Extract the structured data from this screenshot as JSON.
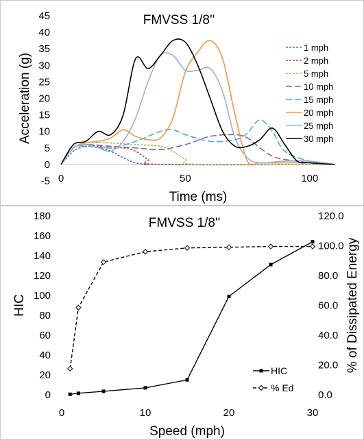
{
  "chart_data": [
    {
      "type": "line",
      "title": "FMVSS 1/8''",
      "xlabel": "Time (ms)",
      "ylabel": "Acceleration (g)",
      "xlim": [
        0,
        110
      ],
      "ylim": [
        -5,
        45
      ],
      "xticks": [
        0,
        50,
        100
      ],
      "yticks": [
        -5,
        0,
        5,
        10,
        15,
        20,
        25,
        30,
        35,
        40,
        45
      ],
      "legend_position": "right",
      "series": [
        {
          "name": "1 mph",
          "color": "#4472c4",
          "dash": "dot",
          "x": [
            0,
            5,
            10,
            15,
            20,
            25,
            30,
            35,
            40,
            110
          ],
          "y": [
            0,
            4,
            5.5,
            5,
            4,
            2,
            0.5,
            0,
            0,
            0
          ]
        },
        {
          "name": "2 mph",
          "color": "#c0504d",
          "dash": "dot",
          "x": [
            0,
            5,
            10,
            15,
            20,
            25,
            30,
            35,
            40,
            110
          ],
          "y": [
            0,
            5,
            6,
            5.5,
            5,
            5,
            4,
            1.5,
            0,
            0
          ]
        },
        {
          "name": "5 mph",
          "color": "#9bbb59",
          "dash": "dot",
          "x": [
            0,
            5,
            10,
            20,
            30,
            40,
            45,
            50,
            55,
            110
          ],
          "y": [
            0,
            5,
            6.5,
            6.5,
            6,
            5.5,
            4,
            1.5,
            0,
            0
          ]
        },
        {
          "name": "10 mph",
          "color": "#8064a2",
          "dash": "longdash",
          "x": [
            0,
            5,
            10,
            20,
            30,
            40,
            50,
            60,
            70,
            75,
            80,
            85,
            90,
            100,
            110
          ],
          "y": [
            0,
            5,
            6,
            5.5,
            5,
            4.5,
            6,
            8.5,
            9,
            8,
            5,
            2.5,
            1.5,
            0.5,
            0
          ]
        },
        {
          "name": "15 mph",
          "color": "#4bacc6",
          "dash": "longdash",
          "x": [
            0,
            5,
            10,
            20,
            30,
            40,
            45,
            50,
            60,
            70,
            75,
            80,
            85,
            90,
            100,
            110
          ],
          "y": [
            0,
            5,
            5.5,
            5,
            7,
            10,
            10.5,
            9,
            7,
            7.5,
            9.5,
            13.5,
            10,
            4,
            1,
            0
          ]
        },
        {
          "name": "20 mph",
          "color": "#f79646",
          "dash": "solid",
          "x": [
            0,
            5,
            10,
            15,
            20,
            25,
            30,
            35,
            40,
            45,
            50,
            55,
            60,
            65,
            70,
            75,
            80,
            90,
            100,
            110
          ],
          "y": [
            0,
            5,
            6.5,
            7,
            8,
            10.5,
            8.5,
            7.5,
            8,
            14,
            28,
            34,
            37.5,
            32,
            15,
            1,
            0.5,
            0.5,
            0.5,
            0
          ]
        },
        {
          "name": "25 mph",
          "color": "#95b3d7",
          "dash": "solid",
          "x": [
            0,
            5,
            10,
            15,
            20,
            25,
            30,
            35,
            40,
            45,
            50,
            55,
            60,
            65,
            70,
            75,
            80,
            90,
            100,
            110
          ],
          "y": [
            0,
            5,
            6,
            5,
            4,
            7,
            14,
            25,
            33,
            33,
            28.5,
            28.5,
            29,
            22,
            8,
            2,
            0.5,
            1,
            1,
            0
          ]
        },
        {
          "name": "30 mph",
          "color": "#000000",
          "dash": "solid",
          "x": [
            0,
            5,
            10,
            15,
            20,
            25,
            30,
            35,
            40,
            45,
            50,
            55,
            60,
            65,
            70,
            75,
            80,
            85,
            90,
            95,
            100,
            110
          ],
          "y": [
            0,
            6,
            7,
            10,
            9,
            15,
            32,
            29,
            33,
            37.5,
            37,
            30,
            20,
            10,
            5.5,
            5.5,
            7.5,
            11,
            6,
            1,
            0.5,
            0
          ]
        }
      ]
    },
    {
      "type": "line",
      "title": "FMVSS 1/8''",
      "xlabel": "Speed (mph)",
      "ylabel": "HIC",
      "y2label": "% of Dissipated Energy",
      "xlim": [
        0,
        30
      ],
      "ylim": [
        0,
        180
      ],
      "y2lim": [
        0,
        120
      ],
      "xticks": [
        0,
        10,
        20,
        30
      ],
      "yticks": [
        0,
        20,
        40,
        60,
        80,
        100,
        120,
        140,
        160,
        180
      ],
      "y2ticks": [
        "0.0",
        "20.0",
        "40.0",
        "60.0",
        "80.0",
        "100.0",
        "120.0"
      ],
      "legend_position": "right",
      "series": [
        {
          "name": "HIC",
          "axis": "left",
          "color": "#000000",
          "dash": "solid",
          "marker": "square",
          "x": [
            1,
            2,
            5,
            10,
            15,
            20,
            25,
            30
          ],
          "y": [
            0.5,
            1.5,
            3.5,
            7,
            15,
            99,
            131,
            154
          ]
        },
        {
          "name": "% Ed",
          "axis": "right",
          "color": "#000000",
          "dash": "dash",
          "marker": "diamond",
          "x": [
            1,
            2,
            5,
            10,
            15,
            20,
            25,
            30
          ],
          "y": [
            17.5,
            58.5,
            89,
            96,
            98.5,
            99,
            99.5,
            99.5
          ]
        }
      ]
    }
  ]
}
